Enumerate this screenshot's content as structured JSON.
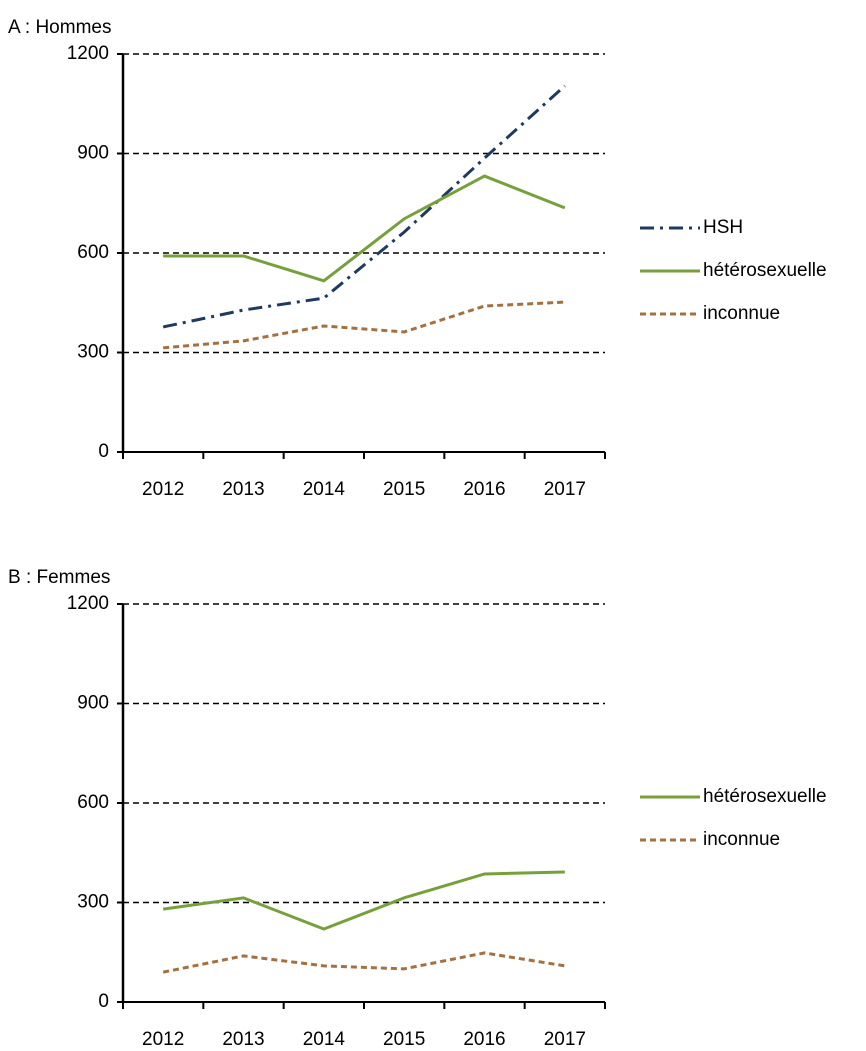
{
  "chart_data": [
    {
      "type": "line",
      "title": "A : Hommes",
      "categories": [
        "2012",
        "2013",
        "2014",
        "2015",
        "2016",
        "2017"
      ],
      "series": [
        {
          "name": "HSH",
          "color": "#1f3a5f",
          "dash": "dashdot",
          "values": [
            377,
            428,
            464,
            663,
            886,
            1104
          ]
        },
        {
          "name": "hétérosexuelle",
          "color": "#77a03a",
          "dash": "solid",
          "values": [
            591,
            591,
            516,
            703,
            832,
            736
          ]
        },
        {
          "name": "inconnue",
          "color": "#a5703f",
          "dash": "dashed",
          "values": [
            314,
            335,
            380,
            362,
            440,
            452
          ]
        }
      ],
      "ylim": [
        0,
        1200
      ],
      "yticks": [
        0,
        300,
        600,
        900,
        1200
      ],
      "grid": true,
      "legend": "right"
    },
    {
      "type": "line",
      "title": "B : Femmes",
      "categories": [
        "2012",
        "2013",
        "2014",
        "2015",
        "2016",
        "2017"
      ],
      "series": [
        {
          "name": "hétérosexuelle",
          "color": "#77a03a",
          "dash": "solid",
          "values": [
            280,
            314,
            220,
            314,
            386,
            392
          ]
        },
        {
          "name": "inconnue",
          "color": "#a5703f",
          "dash": "dashed",
          "values": [
            90,
            139,
            109,
            100,
            148,
            109
          ]
        }
      ],
      "ylim": [
        0,
        1200
      ],
      "yticks": [
        0,
        300,
        600,
        900,
        1200
      ],
      "grid": true,
      "legend": "right"
    }
  ]
}
